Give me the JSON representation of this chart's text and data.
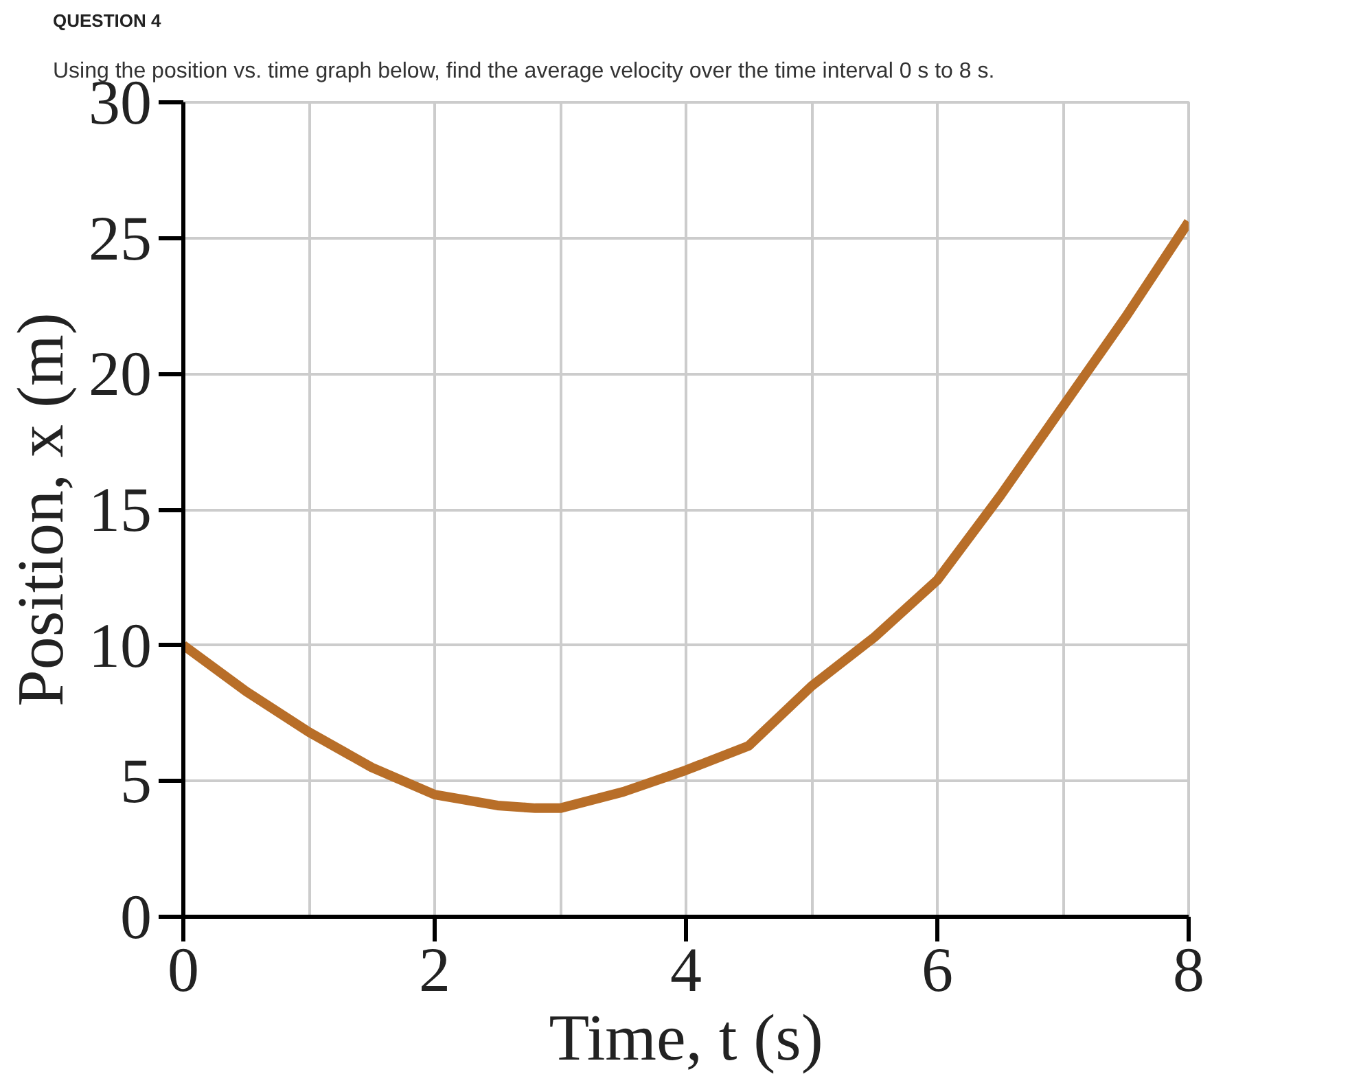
{
  "chart_data": {
    "type": "line",
    "title": "QUESTION 4",
    "subtitle": "Using the position vs. time graph below,  find the average velocity over the time interval 0 s to 8 s.",
    "xlabel": "Time, t (s)",
    "ylabel": "Position, x (m)",
    "x": [
      0,
      0.5,
      1,
      1.5,
      2,
      2.5,
      2.8,
      3,
      3.5,
      4,
      4.5,
      5,
      5.5,
      6,
      6.5,
      7,
      7.5,
      8
    ],
    "series": [
      {
        "color": "#b86e28",
        "values": [
          10,
          8.3,
          6.8,
          5.5,
          4.5,
          4.1,
          4.0,
          4.0,
          4.6,
          5.4,
          6.3,
          8.5,
          10.3,
          12.4,
          15.5,
          18.8,
          22.1,
          25.6
        ]
      }
    ],
    "xlim": [
      0,
      8
    ],
    "ylim": [
      0,
      30
    ],
    "xticks": [
      0,
      {
        "value": 1,
        "label": null
      },
      2,
      {
        "value": 3,
        "label": null
      },
      4,
      {
        "value": 5,
        "label": null
      },
      6,
      {
        "value": 7,
        "label": null
      },
      8
    ],
    "yticks": [
      0,
      5,
      10,
      15,
      20,
      25,
      30
    ],
    "grid": true,
    "marker": "none",
    "line_style": "solid"
  }
}
